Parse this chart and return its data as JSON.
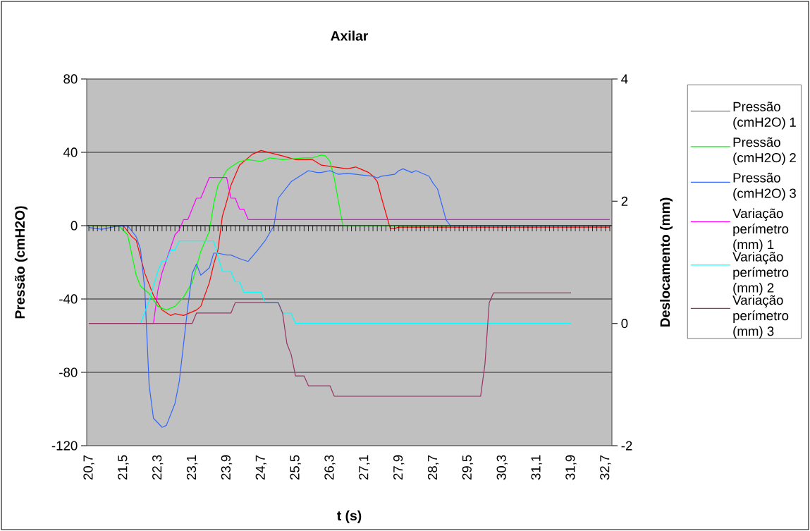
{
  "chart_data": {
    "type": "line",
    "title": "Axilar",
    "xlabel": "t (s)",
    "ylabel": "Pressão (cmH2O)",
    "y2label": "Deslocamento (mm)",
    "xlim": [
      20.65,
      32.85
    ],
    "xticks": [
      {
        "value": 20.7,
        "label": "20,7"
      },
      {
        "value": 20.8,
        "label": null
      },
      {
        "value": 20.9,
        "label": null
      },
      {
        "value": 21.0,
        "label": null
      },
      {
        "value": 21.1,
        "label": null
      },
      {
        "value": 21.2,
        "label": null
      },
      {
        "value": 21.3,
        "label": null
      },
      {
        "value": 21.4,
        "label": null
      },
      {
        "value": 21.5,
        "label": "21,5"
      },
      {
        "value": 21.6,
        "label": null
      },
      {
        "value": 21.7,
        "label": null
      },
      {
        "value": 21.8,
        "label": null
      },
      {
        "value": 21.9,
        "label": null
      },
      {
        "value": 22.0,
        "label": null
      },
      {
        "value": 22.1,
        "label": null
      },
      {
        "value": 22.2,
        "label": null
      },
      {
        "value": 22.3,
        "label": "22,3"
      },
      {
        "value": 22.4,
        "label": null
      },
      {
        "value": 22.5,
        "label": null
      },
      {
        "value": 22.6,
        "label": null
      },
      {
        "value": 22.7,
        "label": null
      },
      {
        "value": 22.8,
        "label": null
      },
      {
        "value": 22.9,
        "label": null
      },
      {
        "value": 23.0,
        "label": null
      },
      {
        "value": 23.1,
        "label": "23,1"
      },
      {
        "value": 23.2,
        "label": null
      },
      {
        "value": 23.3,
        "label": null
      },
      {
        "value": 23.4,
        "label": null
      },
      {
        "value": 23.5,
        "label": null
      },
      {
        "value": 23.6,
        "label": null
      },
      {
        "value": 23.7,
        "label": null
      },
      {
        "value": 23.8,
        "label": null
      },
      {
        "value": 23.9,
        "label": "23,9"
      },
      {
        "value": 24.0,
        "label": null
      },
      {
        "value": 24.1,
        "label": null
      },
      {
        "value": 24.2,
        "label": null
      },
      {
        "value": 24.3,
        "label": null
      },
      {
        "value": 24.4,
        "label": null
      },
      {
        "value": 24.5,
        "label": null
      },
      {
        "value": 24.6,
        "label": null
      },
      {
        "value": 24.7,
        "label": "24,7"
      },
      {
        "value": 24.8,
        "label": null
      },
      {
        "value": 24.9,
        "label": null
      },
      {
        "value": 25.0,
        "label": null
      },
      {
        "value": 25.1,
        "label": null
      },
      {
        "value": 25.2,
        "label": null
      },
      {
        "value": 25.3,
        "label": null
      },
      {
        "value": 25.4,
        "label": null
      },
      {
        "value": 25.5,
        "label": "25,5"
      },
      {
        "value": 25.6,
        "label": null
      },
      {
        "value": 25.7,
        "label": null
      },
      {
        "value": 25.8,
        "label": null
      },
      {
        "value": 25.9,
        "label": null
      },
      {
        "value": 26.0,
        "label": null
      },
      {
        "value": 26.1,
        "label": null
      },
      {
        "value": 26.2,
        "label": null
      },
      {
        "value": 26.3,
        "label": "26,3"
      },
      {
        "value": 26.4,
        "label": null
      },
      {
        "value": 26.5,
        "label": null
      },
      {
        "value": 26.6,
        "label": null
      },
      {
        "value": 26.7,
        "label": null
      },
      {
        "value": 26.8,
        "label": null
      },
      {
        "value": 26.9,
        "label": null
      },
      {
        "value": 27.0,
        "label": null
      },
      {
        "value": 27.1,
        "label": "27,1"
      },
      {
        "value": 27.2,
        "label": null
      },
      {
        "value": 27.3,
        "label": null
      },
      {
        "value": 27.4,
        "label": null
      },
      {
        "value": 27.5,
        "label": null
      },
      {
        "value": 27.6,
        "label": null
      },
      {
        "value": 27.7,
        "label": null
      },
      {
        "value": 27.8,
        "label": null
      },
      {
        "value": 27.9,
        "label": "27,9"
      },
      {
        "value": 28.0,
        "label": null
      },
      {
        "value": 28.1,
        "label": null
      },
      {
        "value": 28.2,
        "label": null
      },
      {
        "value": 28.3,
        "label": null
      },
      {
        "value": 28.4,
        "label": null
      },
      {
        "value": 28.5,
        "label": null
      },
      {
        "value": 28.6,
        "label": null
      },
      {
        "value": 28.7,
        "label": "28,7"
      },
      {
        "value": 28.8,
        "label": null
      },
      {
        "value": 28.9,
        "label": null
      },
      {
        "value": 29.0,
        "label": null
      },
      {
        "value": 29.1,
        "label": null
      },
      {
        "value": 29.2,
        "label": null
      },
      {
        "value": 29.3,
        "label": null
      },
      {
        "value": 29.4,
        "label": null
      },
      {
        "value": 29.5,
        "label": "29,5"
      },
      {
        "value": 29.6,
        "label": null
      },
      {
        "value": 29.7,
        "label": null
      },
      {
        "value": 29.8,
        "label": null
      },
      {
        "value": 29.9,
        "label": null
      },
      {
        "value": 30.0,
        "label": null
      },
      {
        "value": 30.1,
        "label": null
      },
      {
        "value": 30.2,
        "label": null
      },
      {
        "value": 30.3,
        "label": "30,3"
      },
      {
        "value": 30.4,
        "label": null
      },
      {
        "value": 30.5,
        "label": null
      },
      {
        "value": 30.6,
        "label": null
      },
      {
        "value": 30.7,
        "label": null
      },
      {
        "value": 30.8,
        "label": null
      },
      {
        "value": 30.9,
        "label": null
      },
      {
        "value": 31.0,
        "label": null
      },
      {
        "value": 31.1,
        "label": "31,1"
      },
      {
        "value": 31.2,
        "label": null
      },
      {
        "value": 31.3,
        "label": null
      },
      {
        "value": 31.4,
        "label": null
      },
      {
        "value": 31.5,
        "label": null
      },
      {
        "value": 31.6,
        "label": null
      },
      {
        "value": 31.7,
        "label": null
      },
      {
        "value": 31.8,
        "label": null
      },
      {
        "value": 31.9,
        "label": "31,9"
      },
      {
        "value": 32.0,
        "label": null
      },
      {
        "value": 32.1,
        "label": null
      },
      {
        "value": 32.2,
        "label": null
      },
      {
        "value": 32.3,
        "label": null
      },
      {
        "value": 32.4,
        "label": null
      },
      {
        "value": 32.5,
        "label": null
      },
      {
        "value": 32.6,
        "label": null
      },
      {
        "value": 32.7,
        "label": "32,7"
      },
      {
        "value": 32.8,
        "label": null
      }
    ],
    "ylim": [
      -120,
      80
    ],
    "yticks": [
      -120,
      -80,
      -40,
      0,
      40,
      80
    ],
    "y2lim": [
      -2,
      4
    ],
    "y2ticks": [
      -2,
      0,
      2,
      4
    ],
    "grid": "y",
    "legend": "right",
    "series": [
      {
        "name": "Pressão (cmH2O) 1",
        "color": "#ff0000",
        "x": [
          20.7,
          21.5,
          21.7,
          21.8,
          22.0,
          22.2,
          22.4,
          22.6,
          22.7,
          22.9,
          23.2,
          23.3,
          23.5,
          23.6,
          23.7,
          23.8,
          23.9,
          24.0,
          24.2,
          24.5,
          24.7,
          25.2,
          25.5,
          25.9,
          26.1,
          26.4,
          26.7,
          26.9,
          27.0,
          27.2,
          27.3,
          27.4,
          27.5,
          27.7,
          27.8,
          27.9,
          32.8
        ],
        "values": [
          0,
          0,
          -6,
          -8,
          -26,
          -38,
          -46,
          -49,
          -48,
          -49,
          -46,
          -44,
          -31,
          -21,
          -13,
          5,
          13,
          22,
          33,
          39,
          41,
          38,
          36,
          36,
          33,
          32,
          31,
          32,
          31,
          29,
          27,
          24,
          15,
          -1.5,
          -1.5,
          -0.8,
          -0.8
        ]
      },
      {
        "name": "Pressão (cmH2O) 2",
        "color": "#00ff00",
        "x": [
          20.7,
          21.4,
          21.6,
          21.8,
          21.9,
          22.1,
          22.3,
          22.5,
          22.7,
          22.9,
          23.1,
          23.3,
          23.5,
          23.6,
          23.7,
          23.9,
          24.0,
          24.2,
          24.4,
          24.7,
          24.9,
          25.2,
          25.7,
          25.9,
          26.1,
          26.2,
          26.3,
          26.4,
          26.6,
          31.9
        ],
        "values": [
          0,
          0,
          -5,
          -27,
          -33,
          -37,
          -44,
          -46,
          -44,
          -39,
          -31,
          -14,
          -3,
          12,
          22,
          30,
          32,
          35,
          36,
          35,
          37,
          36,
          37,
          37,
          38.5,
          38,
          35,
          26,
          0,
          0
        ]
      },
      {
        "name": "Pressão (cmH2O) 3",
        "color": "#3366ff",
        "x": [
          20.7,
          21.0,
          21.3,
          21.6,
          21.8,
          21.9,
          22.0,
          22.1,
          22.2,
          22.4,
          22.5,
          22.7,
          22.8,
          23.0,
          23.1,
          23.2,
          23.3,
          23.5,
          23.6,
          23.7,
          23.9,
          24.0,
          24.2,
          24.4,
          24.6,
          24.8,
          25.0,
          25.1,
          25.4,
          25.6,
          25.8,
          26.0,
          26.1,
          26.3,
          26.5,
          26.7,
          26.9,
          27.3,
          27.4,
          27.5,
          27.8,
          27.9,
          28.0,
          28.2,
          28.3,
          28.5,
          28.6,
          28.7,
          28.8,
          29.0,
          29.1,
          31.9
        ],
        "values": [
          -1,
          -2,
          -0.5,
          0,
          -6,
          -13,
          -35,
          -87,
          -105,
          -110,
          -109,
          -97,
          -85,
          -44,
          -26,
          -21,
          -27,
          -23,
          -15,
          -15,
          -16,
          -16,
          -18,
          -19.5,
          -14,
          -8,
          0,
          15,
          24,
          27,
          30,
          29,
          29,
          30,
          28,
          28.5,
          28,
          27,
          26,
          27,
          28,
          30,
          31,
          29,
          30,
          28,
          27,
          23,
          20,
          3,
          0,
          0
        ]
      },
      {
        "name": "Variação perímetro (mm) 1",
        "color": "#ff00ff",
        "axis": "y2",
        "x": [
          20.7,
          22.2,
          22.3,
          22.4,
          22.6,
          22.7,
          22.8,
          22.9,
          23.0,
          23.2,
          23.3,
          23.5,
          23.9,
          24.0,
          24.1,
          24.2,
          24.3,
          24.4,
          32.8
        ],
        "values": [
          0,
          0,
          0.53,
          0.83,
          1.24,
          1.45,
          1.53,
          1.7,
          1.7,
          2.05,
          2.05,
          2.39,
          2.39,
          2.05,
          2.05,
          1.87,
          1.87,
          1.7,
          1.7
        ]
      },
      {
        "name": "Variação perímetro (mm) 2",
        "color": "#00ffff",
        "axis": "y2",
        "x": [
          20.7,
          21.9,
          22.1,
          22.3,
          22.4,
          22.5,
          22.6,
          22.7,
          22.8,
          23.6,
          23.8,
          24.0,
          24.1,
          24.2,
          24.3,
          24.7,
          24.8,
          25.1,
          25.2,
          25.4,
          25.5,
          31.9
        ],
        "values": [
          0,
          0,
          0.37,
          0.85,
          1.02,
          1.02,
          1.2,
          1.2,
          1.35,
          1.35,
          0.85,
          0.85,
          0.68,
          0.68,
          0.51,
          0.51,
          0.34,
          0.34,
          0.17,
          0.17,
          0,
          0
        ]
      },
      {
        "name": "Variação perímetro (mm) 3",
        "color": "#993366",
        "axis": "y2",
        "x": [
          20.7,
          23.1,
          23.2,
          24.0,
          24.1,
          25.1,
          25.2,
          25.3,
          25.4,
          25.5,
          25.7,
          25.8,
          26.3,
          26.4,
          29.8,
          29.9,
          30.0,
          30.1,
          31.9
        ],
        "values": [
          0,
          0,
          0.17,
          0.17,
          0.34,
          0.34,
          0.17,
          -0.33,
          -0.51,
          -0.86,
          -0.86,
          -1.02,
          -1.02,
          -1.19,
          -1.19,
          -0.67,
          0.34,
          0.5,
          0.5
        ]
      }
    ]
  }
}
